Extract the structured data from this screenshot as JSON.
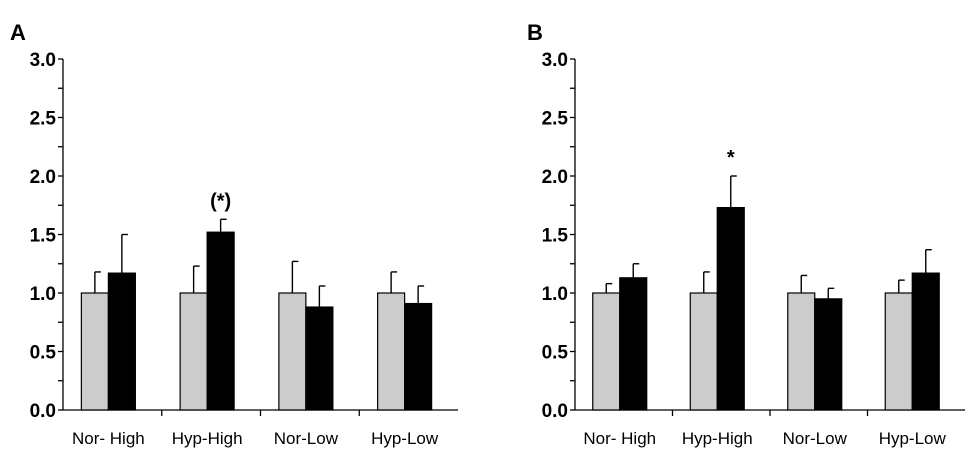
{
  "chart_data": [
    {
      "type": "bar",
      "panel_label": "A",
      "categories": [
        "Nor- High",
        "Hyp-High",
        "Nor-Low",
        "Hyp-Low"
      ],
      "series": [
        {
          "color": "#cccccc",
          "values": [
            1.0,
            1.0,
            1.0,
            1.0
          ],
          "errors": [
            0.18,
            0.23,
            0.27,
            0.18
          ]
        },
        {
          "color": "#000000",
          "values": [
            1.17,
            1.52,
            0.88,
            0.91
          ],
          "errors": [
            0.33,
            0.11,
            0.18,
            0.15
          ]
        }
      ],
      "annotations": [
        {
          "category_index": 1,
          "series_index": 1,
          "text": "(*)"
        }
      ],
      "yticks": [
        "0.0",
        "0.5",
        "1.0",
        "1.5",
        "2.0",
        "2.5",
        "3.0"
      ],
      "ylim": [
        0,
        3.0
      ],
      "ytick_step": 0.5,
      "yminor_step": 0.25,
      "grid": false,
      "xlabel": "",
      "ylabel": ""
    },
    {
      "type": "bar",
      "panel_label": "B",
      "categories": [
        "Nor- High",
        "Hyp-High",
        "Nor-Low",
        "Hyp-Low"
      ],
      "series": [
        {
          "color": "#cccccc",
          "values": [
            1.0,
            1.0,
            1.0,
            1.0
          ],
          "errors": [
            0.08,
            0.18,
            0.15,
            0.11
          ]
        },
        {
          "color": "#000000",
          "values": [
            1.13,
            1.73,
            0.95,
            1.17
          ],
          "errors": [
            0.12,
            0.27,
            0.09,
            0.2
          ]
        }
      ],
      "annotations": [
        {
          "category_index": 1,
          "series_index": 1,
          "text": "*"
        }
      ],
      "yticks": [
        "0.0",
        "0.5",
        "1.0",
        "1.5",
        "2.0",
        "2.5",
        "3.0"
      ],
      "ylim": [
        0,
        3.0
      ],
      "ytick_step": 0.5,
      "yminor_step": 0.25,
      "grid": false,
      "xlabel": "",
      "ylabel": ""
    }
  ]
}
